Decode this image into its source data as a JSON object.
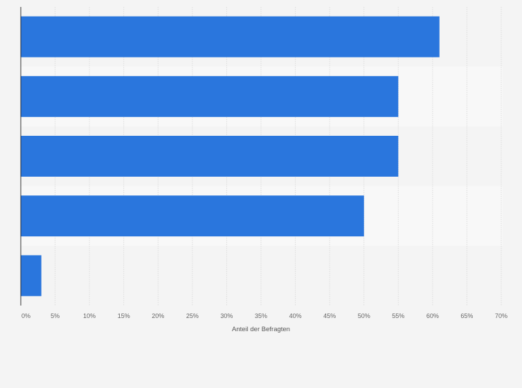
{
  "chart_data": {
    "type": "bar",
    "orientation": "horizontal",
    "categories": [
      "",
      "",
      "",
      "",
      ""
    ],
    "values": [
      61,
      55,
      55,
      50,
      3
    ],
    "xlabel": "Anteil der Befragten",
    "ylabel": "",
    "xlim": [
      0,
      70
    ],
    "x_ticks": [
      "0%",
      "5%",
      "10%",
      "15%",
      "20%",
      "25%",
      "30%",
      "35%",
      "40%",
      "45%",
      "50%",
      "55%",
      "60%",
      "65%",
      "70%"
    ],
    "grid": "vertical",
    "legend": "none",
    "colors": {
      "bar": "#2a76dd",
      "background": "#f4f4f4",
      "band_alt": "#f8f8f8",
      "gridline": "#dddddd",
      "axis": "#333333"
    }
  }
}
